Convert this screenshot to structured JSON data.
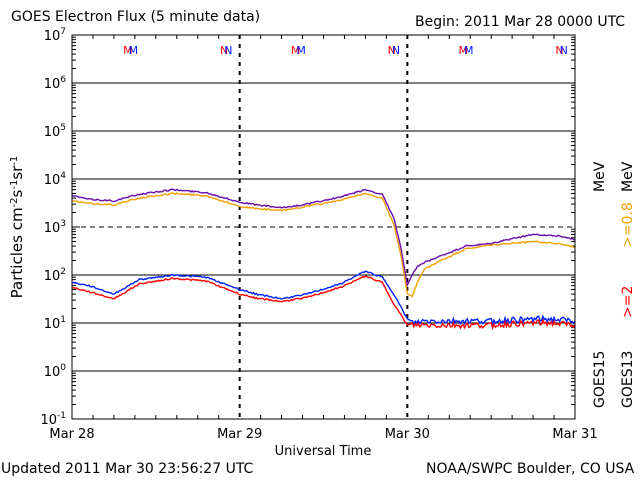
{
  "header": {
    "title": "GOES Electron Flux (5 minute data)",
    "begin": "Begin: 2011 Mar 28 0000 UTC"
  },
  "footer": {
    "updated": "Updated 2011 Mar 30 23:56:27 UTC",
    "credit": "NOAA/SWPC Boulder, CO USA"
  },
  "legend": {
    "s1_energy": ">=2",
    "s1_unit": "MeV",
    "s2_energy": ">=0.8",
    "s2_unit": "MeV",
    "sat1": "GOES15",
    "sat2": "GOES13"
  },
  "chart_data": {
    "type": "line",
    "title": "GOES Electron Flux (5 minute data)",
    "xlabel": "Universal Time",
    "ylabel": "Particles cm-2s-1sr-1",
    "y_scale": "log",
    "ylim": [
      0.1,
      10000000
    ],
    "y_tick_labels": [
      {
        "base": "10",
        "exp": "-1"
      },
      {
        "base": "10",
        "exp": "0"
      },
      {
        "base": "10",
        "exp": "1"
      },
      {
        "base": "10",
        "exp": "2"
      },
      {
        "base": "10",
        "exp": "3"
      },
      {
        "base": "10",
        "exp": "4"
      },
      {
        "base": "10",
        "exp": "5"
      },
      {
        "base": "10",
        "exp": "6"
      },
      {
        "base": "10",
        "exp": "7"
      }
    ],
    "x_tick_labels": [
      "Mar 28",
      "Mar 29",
      "Mar 30",
      "Mar 31"
    ],
    "x_unit": "days since Begin",
    "threshold": 1000,
    "grid": "horizontal at decades",
    "markers": [
      {
        "label": "MM",
        "x": 0.35
      },
      {
        "label": "NN",
        "x": 0.92
      },
      {
        "label": "MM",
        "x": 1.35
      },
      {
        "label": "NN",
        "x": 1.92
      },
      {
        "label": "MM",
        "x": 2.35
      },
      {
        "label": "NN",
        "x": 2.92
      }
    ],
    "series": [
      {
        "name": "GOES15 >=0.8 MeV",
        "color": "#6a0dad",
        "x": [
          0,
          0.1,
          0.25,
          0.4,
          0.6,
          0.8,
          1.0,
          1.1,
          1.25,
          1.4,
          1.6,
          1.75,
          1.85,
          1.92,
          1.96,
          2.0,
          2.03,
          2.06,
          2.1,
          2.2,
          2.35,
          2.5,
          2.6,
          2.75,
          2.9,
          3.0
        ],
        "y": [
          4500,
          3800,
          3500,
          4800,
          6000,
          5200,
          3300,
          2900,
          2500,
          3000,
          4200,
          6000,
          4800,
          1500,
          400,
          60,
          100,
          150,
          180,
          250,
          400,
          450,
          550,
          700,
          650,
          550
        ]
      },
      {
        "name": "GOES13 >=0.8 MeV",
        "color": "#f0a000",
        "x": [
          0,
          0.1,
          0.25,
          0.4,
          0.6,
          0.8,
          1.0,
          1.1,
          1.25,
          1.4,
          1.6,
          1.75,
          1.85,
          1.92,
          1.96,
          2.0,
          2.03,
          2.06,
          2.1,
          2.2,
          2.35,
          2.5,
          2.6,
          2.75,
          2.9,
          3.0
        ],
        "y": [
          3500,
          3100,
          2900,
          4000,
          5000,
          4500,
          2700,
          2400,
          2200,
          2700,
          3600,
          5000,
          4000,
          1100,
          280,
          40,
          35,
          70,
          130,
          200,
          350,
          420,
          450,
          500,
          450,
          380
        ]
      },
      {
        "name": "GOES15 >=2 MeV",
        "color": "#0020ff",
        "x": [
          0,
          0.1,
          0.25,
          0.4,
          0.6,
          0.8,
          1.0,
          1.1,
          1.25,
          1.4,
          1.6,
          1.75,
          1.85,
          1.92,
          1.96,
          2.0,
          2.03,
          2.1,
          2.3,
          2.5,
          2.7,
          2.85,
          3.0
        ],
        "y": [
          70,
          60,
          40,
          80,
          100,
          90,
          50,
          40,
          32,
          40,
          65,
          120,
          90,
          40,
          22,
          12,
          10,
          11,
          11,
          11,
          12,
          12,
          11
        ]
      },
      {
        "name": "GOES13 >=2 MeV",
        "color": "#ff0000",
        "x": [
          0,
          0.1,
          0.25,
          0.4,
          0.6,
          0.8,
          1.0,
          1.1,
          1.25,
          1.4,
          1.6,
          1.75,
          1.85,
          1.92,
          1.96,
          2.0,
          2.03,
          2.1,
          2.3,
          2.5,
          2.7,
          2.85,
          3.0
        ],
        "y": [
          55,
          45,
          32,
          65,
          85,
          75,
          40,
          33,
          28,
          34,
          55,
          95,
          70,
          25,
          15,
          9,
          9,
          9,
          9,
          9,
          10,
          10,
          9
        ]
      }
    ]
  }
}
